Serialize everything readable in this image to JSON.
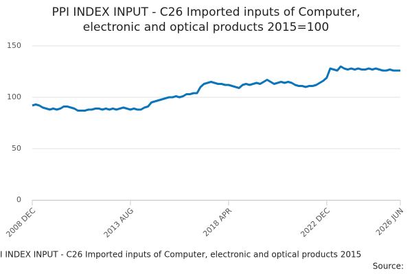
{
  "chart_data": {
    "type": "line",
    "title": "PPI INDEX INPUT - C26 Imported inputs of Computer, electronic and optical products 2015=100",
    "footer_title": "I INDEX INPUT - C26 Imported inputs of Computer, electronic and optical products 2015",
    "source": "Source:",
    "categories": [
      "2008 DEC",
      null,
      null,
      null,
      null,
      null,
      null,
      null,
      null,
      null,
      null,
      null,
      null,
      null,
      null,
      null,
      null,
      null,
      null,
      null,
      null,
      null,
      null,
      null,
      null,
      null,
      null,
      null,
      "2013 AUG",
      null,
      null,
      null,
      null,
      null,
      null,
      null,
      null,
      null,
      null,
      null,
      null,
      null,
      null,
      null,
      null,
      null,
      null,
      null,
      null,
      null,
      null,
      null,
      null,
      null,
      null,
      null,
      "2018 APR",
      null,
      null,
      null,
      null,
      null,
      null,
      null,
      null,
      null,
      null,
      null,
      null,
      null,
      null,
      null,
      null,
      null,
      null,
      null,
      null,
      null,
      null,
      null,
      null,
      null,
      null,
      null,
      "2022 DEC",
      null,
      null,
      null,
      null,
      null,
      null,
      null,
      null,
      null,
      null,
      null,
      null,
      null,
      null,
      null,
      null,
      null,
      null,
      null,
      null,
      "2026 JUN"
    ],
    "series": [
      {
        "name": "PPI",
        "color": "#0b74ba",
        "values": [
          92,
          93,
          92,
          90,
          89,
          88,
          89,
          88,
          89,
          91,
          91,
          90,
          89,
          87,
          87,
          87,
          88,
          88,
          89,
          89,
          88,
          89,
          88,
          89,
          88,
          89,
          90,
          89,
          88,
          89,
          88,
          88,
          90,
          91,
          95,
          96,
          97,
          98,
          99,
          100,
          100,
          101,
          100,
          101,
          103,
          103,
          104,
          104,
          110,
          113,
          114,
          115,
          114,
          113,
          113,
          112,
          112,
          111,
          110,
          109,
          112,
          113,
          112,
          113,
          114,
          113,
          115,
          117,
          115,
          113,
          114,
          115,
          114,
          115,
          114,
          112,
          111,
          111,
          110,
          111,
          111,
          112,
          114,
          116,
          119,
          128,
          127,
          126,
          130,
          128,
          127,
          128,
          127,
          128,
          127,
          127,
          128,
          127,
          128,
          127,
          126,
          126,
          127,
          126,
          126,
          126
        ]
      }
    ],
    "ylim": [
      0,
      150
    ],
    "yticks": [
      0,
      50,
      100,
      150
    ],
    "grid": true
  }
}
